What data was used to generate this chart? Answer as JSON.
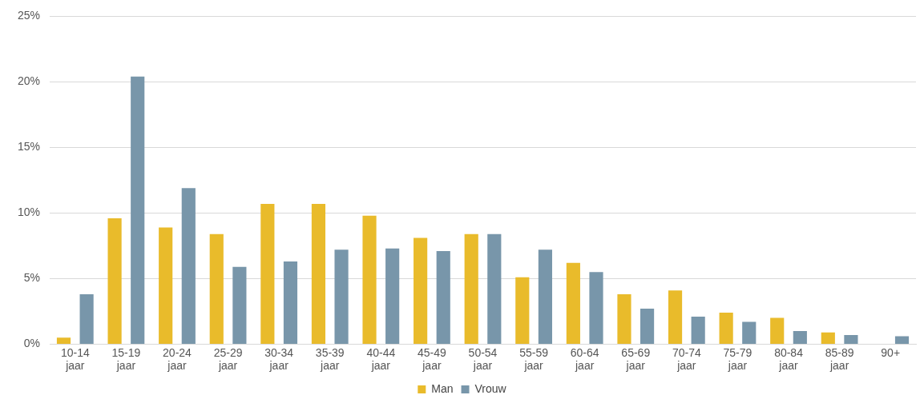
{
  "chart_data": {
    "type": "bar",
    "categories": [
      "10-14 jaar",
      "15-19 jaar",
      "20-24 jaar",
      "25-29 jaar",
      "30-34 jaar",
      "35-39 jaar",
      "40-44 jaar",
      "45-49 jaar",
      "50-54 jaar",
      "55-59 jaar",
      "60-64 jaar",
      "65-69 jaar",
      "70-74 jaar",
      "75-79 jaar",
      "80-84 jaar",
      "85-89 jaar",
      "90+"
    ],
    "series": [
      {
        "name": "Man",
        "color": "#e9bb2b",
        "values": [
          0.5,
          9.6,
          8.9,
          8.4,
          10.7,
          10.7,
          9.8,
          8.1,
          8.4,
          5.1,
          6.2,
          3.8,
          4.1,
          2.4,
          2.0,
          0.9,
          0.0
        ]
      },
      {
        "name": "Vrouw",
        "color": "#7896aa",
        "values": [
          3.8,
          20.4,
          11.9,
          5.9,
          6.3,
          7.2,
          7.3,
          7.1,
          8.4,
          7.2,
          5.5,
          2.7,
          2.1,
          1.7,
          1.0,
          0.7,
          0.6
        ]
      }
    ],
    "ylim": [
      0,
      25
    ],
    "yticks": [
      {
        "value": 0,
        "label": "0%"
      },
      {
        "value": 5,
        "label": "5%"
      },
      {
        "value": 10,
        "label": "10%"
      },
      {
        "value": 15,
        "label": "15%"
      },
      {
        "value": 20,
        "label": "20%"
      },
      {
        "value": 25,
        "label": "25%"
      }
    ],
    "grid": "y",
    "legend": "bottom"
  }
}
